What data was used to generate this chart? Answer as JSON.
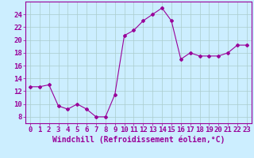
{
  "x": [
    0,
    1,
    2,
    3,
    4,
    5,
    6,
    7,
    8,
    9,
    10,
    11,
    12,
    13,
    14,
    15,
    16,
    17,
    18,
    19,
    20,
    21,
    22,
    23
  ],
  "y": [
    12.7,
    12.7,
    13.0,
    9.7,
    9.2,
    10.0,
    9.2,
    8.0,
    8.0,
    11.5,
    20.7,
    21.5,
    23.0,
    24.0,
    25.0,
    23.0,
    17.0,
    18.0,
    17.5,
    17.5,
    17.5,
    18.0,
    19.2,
    19.2
  ],
  "line_color": "#990099",
  "marker": "D",
  "marker_size": 2,
  "bg_color": "#cceeff",
  "grid_color": "#aacccc",
  "xlabel": "Windchill (Refroidissement éolien,°C)",
  "yticks": [
    8,
    10,
    12,
    14,
    16,
    18,
    20,
    22,
    24
  ],
  "xticks": [
    0,
    1,
    2,
    3,
    4,
    5,
    6,
    7,
    8,
    9,
    10,
    11,
    12,
    13,
    14,
    15,
    16,
    17,
    18,
    19,
    20,
    21,
    22,
    23
  ],
  "ylim": [
    7,
    26
  ],
  "xlim": [
    -0.5,
    23.5
  ],
  "xlabel_fontsize": 7,
  "tick_fontsize": 6.5,
  "axis_color": "#990099",
  "tick_color": "#990099"
}
